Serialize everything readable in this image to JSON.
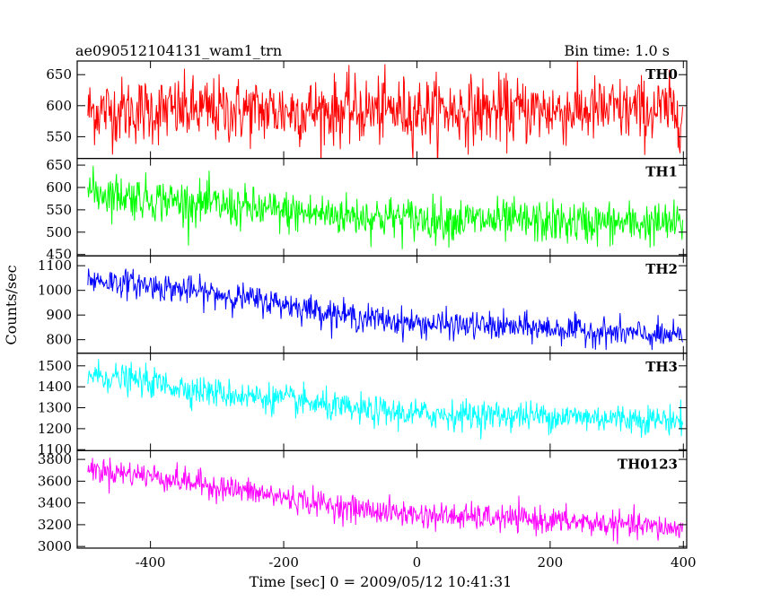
{
  "chart_data": {
    "type": "line",
    "title": "ae090512104131_wam1_trn",
    "subtitle": "Bin time: 1.0 s",
    "xlabel": "Time [sec] 0 = 2009/05/12 10:41:31",
    "ylabel": "Counts/sec",
    "xlim": [
      -510,
      405
    ],
    "x_ticks": [
      -400,
      -200,
      0,
      200,
      400
    ],
    "x_range": [
      -494,
      399
    ],
    "bin_time": 1.0,
    "grid": false,
    "panels": [
      {
        "name": "TH0",
        "color": "#ff0000",
        "ylim": [
          515,
          672
        ],
        "yticks": [
          550,
          600,
          650
        ],
        "trend": [
          [
            -494,
            592
          ],
          [
            -200,
            592
          ],
          [
            0,
            592
          ],
          [
            200,
            592
          ],
          [
            399,
            592
          ]
        ],
        "noise_sd": 27
      },
      {
        "name": "TH1",
        "color": "#00ff00",
        "ylim": [
          447,
          665
        ],
        "yticks": [
          450,
          500,
          550,
          600,
          650
        ],
        "trend": [
          [
            -494,
            592
          ],
          [
            -400,
            575
          ],
          [
            -200,
            545
          ],
          [
            0,
            530
          ],
          [
            200,
            522
          ],
          [
            399,
            518
          ]
        ],
        "noise_sd": 24
      },
      {
        "name": "TH2",
        "color": "#0000ff",
        "ylim": [
          745,
          1140
        ],
        "yticks": [
          800,
          900,
          1000,
          1100
        ],
        "trend": [
          [
            -494,
            1045
          ],
          [
            -400,
            1020
          ],
          [
            -300,
            985
          ],
          [
            -200,
            945
          ],
          [
            -100,
            895
          ],
          [
            0,
            865
          ],
          [
            200,
            845
          ],
          [
            399,
            810
          ]
        ],
        "noise_sd": 28
      },
      {
        "name": "TH3",
        "color": "#00ffff",
        "ylim": [
          1095,
          1560
        ],
        "yticks": [
          1100,
          1200,
          1300,
          1400,
          1500
        ],
        "trend": [
          [
            -494,
            1460
          ],
          [
            -400,
            1420
          ],
          [
            -300,
            1370
          ],
          [
            -200,
            1340
          ],
          [
            -100,
            1290
          ],
          [
            0,
            1270
          ],
          [
            200,
            1260
          ],
          [
            399,
            1240
          ]
        ],
        "noise_sd": 35
      },
      {
        "name": "TH0123",
        "color": "#ff00ff",
        "ylim": [
          2985,
          3880
        ],
        "yticks": [
          3000,
          3200,
          3400,
          3600,
          3800
        ],
        "trend": [
          [
            -494,
            3710
          ],
          [
            -400,
            3650
          ],
          [
            -300,
            3550
          ],
          [
            -200,
            3450
          ],
          [
            -100,
            3350
          ],
          [
            0,
            3290
          ],
          [
            200,
            3240
          ],
          [
            399,
            3160
          ]
        ],
        "noise_sd": 60
      }
    ]
  }
}
